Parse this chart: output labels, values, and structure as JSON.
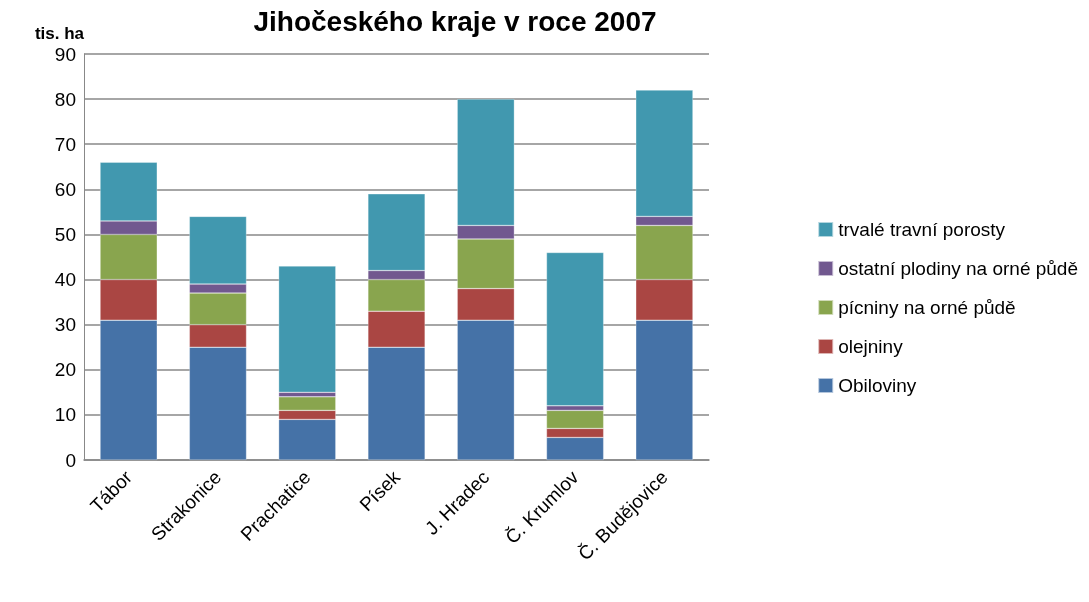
{
  "chart_data": {
    "type": "bar",
    "title": "Jihočeského kraje v roce 2007",
    "ylabel": "tis. ha",
    "categories": [
      "Tábor",
      "Strakonice",
      "Prachatice",
      "Písek",
      "J. Hradec",
      "Č. Krumlov",
      "Č. Budějovice"
    ],
    "series": [
      {
        "name": "Obiloviny",
        "color": "#4572a7",
        "values": [
          31,
          25,
          9,
          25,
          31,
          5,
          31
        ]
      },
      {
        "name": "olejniny",
        "color": "#aa4643",
        "values": [
          9,
          5,
          2,
          8,
          7,
          2,
          9
        ]
      },
      {
        "name": "pícniny na orné půdě",
        "color": "#89a54e",
        "values": [
          10,
          7,
          3,
          7,
          11,
          4,
          12
        ]
      },
      {
        "name": "ostatní plodiny na orné půdě",
        "color": "#71588f",
        "values": [
          3,
          2,
          1,
          2,
          3,
          1,
          2
        ]
      },
      {
        "name": "trvalé travní porosty",
        "color": "#4198af",
        "values": [
          13,
          15,
          28,
          17,
          28,
          34,
          28
        ]
      }
    ],
    "stacked": true,
    "ylim": [
      0,
      90
    ],
    "yticks": [
      0,
      10,
      20,
      30,
      40,
      50,
      60,
      70,
      80,
      90
    ],
    "grid": "y",
    "legend": "right"
  }
}
